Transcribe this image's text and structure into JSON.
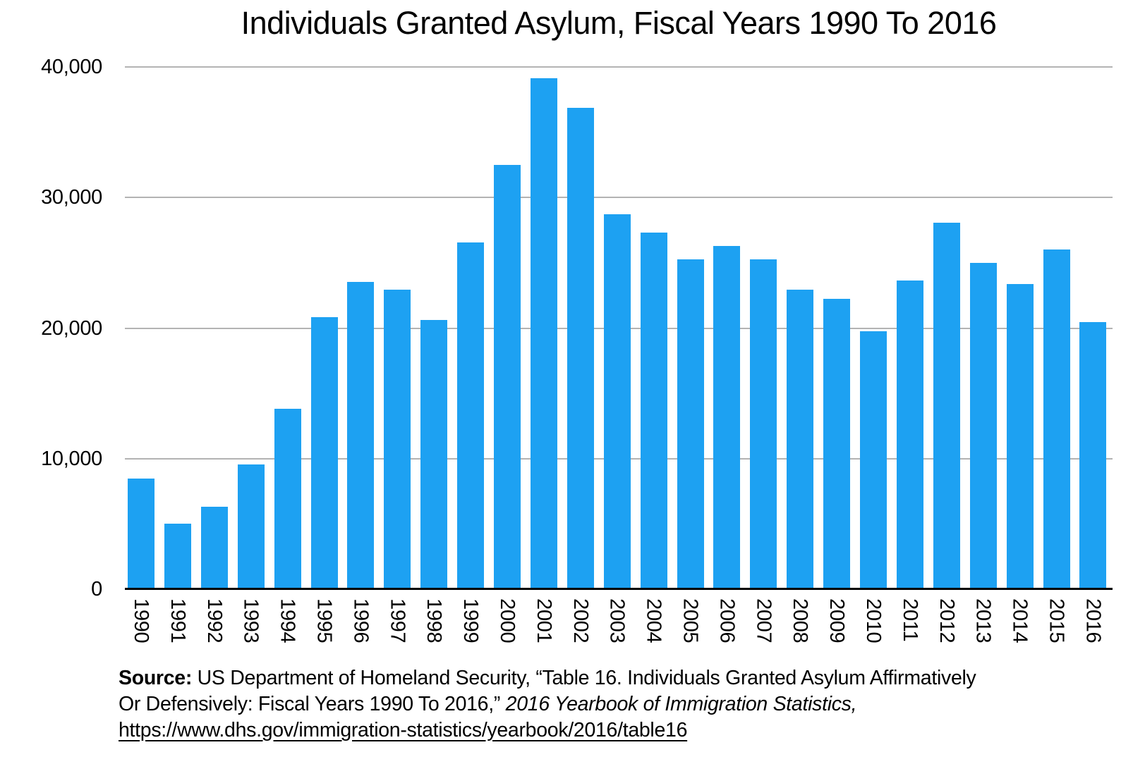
{
  "page": {
    "background_color": "#ffffff",
    "text_color": "#000000"
  },
  "chart_data": {
    "type": "bar",
    "title": "Individuals Granted Asylum, Fiscal Years 1990 To 2016",
    "xlabel": "",
    "ylabel": "",
    "categories": [
      "1990",
      "1991",
      "1992",
      "1993",
      "1994",
      "1995",
      "1996",
      "1997",
      "1998",
      "1999",
      "2000",
      "2001",
      "2002",
      "2003",
      "2004",
      "2005",
      "2006",
      "2007",
      "2008",
      "2009",
      "2010",
      "2011",
      "2012",
      "2013",
      "2014",
      "2015",
      "2016"
    ],
    "values": [
      8472,
      5035,
      6307,
      9555,
      13827,
      20814,
      23524,
      22939,
      20598,
      26578,
      32522,
      39146,
      36894,
      28714,
      27321,
      25257,
      26265,
      25270,
      22930,
      22219,
      19766,
      23669,
      28050,
      25000,
      23350,
      26000,
      20455
    ],
    "ylim": [
      0,
      40000
    ],
    "yticks": [
      0,
      10000,
      20000,
      30000,
      40000
    ],
    "ytick_labels": [
      "0",
      "10,000",
      "20,000",
      "30,000",
      "40,000"
    ],
    "grid": "horizontal",
    "legend": "none",
    "bar_color": "#1da1f2",
    "gridline_color": "#b3b3b3",
    "axis_line_color": "#000000",
    "x_tick_rotation_deg": 90
  },
  "source": {
    "label": "Source:",
    "line1_rest": " US Department of Homeland Security, “Table 16. Individuals Granted Asylum Affirmatively",
    "line2_normal": "Or Defensively: Fiscal Years 1990 To 2016,” ",
    "line2_italic": " 2016 Yearbook of Immigration Statistics,",
    "url": "https://www.dhs.gov/immigration-statistics/yearbook/2016/table16"
  }
}
